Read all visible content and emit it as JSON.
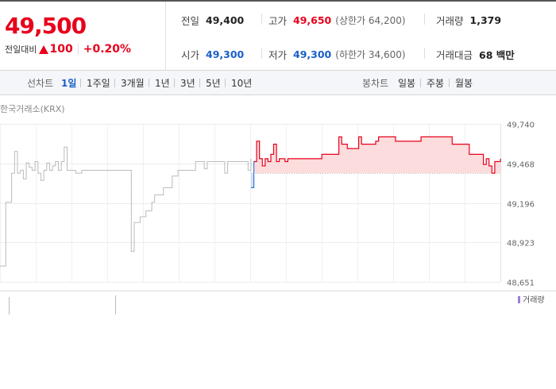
{
  "summary": {
    "current_price": "49,500",
    "change_label": "전일대비",
    "change_amount": "100",
    "change_rate": "+0.20%",
    "stats": [
      {
        "label": "전일",
        "value": "49,400",
        "color": "#222222"
      },
      {
        "label": "고가",
        "value": "49,650",
        "color": "#e8001c",
        "sub": "(상한가 64,200)"
      },
      {
        "label": "거래량",
        "value": "1,379",
        "color": "#222222"
      },
      {
        "label": "시가",
        "value": "49,300",
        "color": "#1a5fc8"
      },
      {
        "label": "저가",
        "value": "49,300",
        "color": "#1a5fc8",
        "sub": "(하한가 34,600)"
      },
      {
        "label": "거래대금",
        "value": "68 백만",
        "color": "#222222"
      }
    ]
  },
  "toolbar": {
    "line_chart_label": "선차트",
    "periods": [
      "1일",
      "1주일",
      "3개월",
      "1년",
      "3년",
      "5년",
      "10년"
    ],
    "active_period": "1일",
    "candle_chart_label": "봉차트",
    "candle_periods": [
      "일봉",
      "주봉",
      "월봉"
    ]
  },
  "chart": {
    "source_label": "한국거래소(KRX)",
    "volume_legend": "거래량"
  },
  "chart_data": {
    "type": "line",
    "y_ticks": [
      "49,740",
      "49,468",
      "49,196",
      "48,923",
      "48,651"
    ],
    "ylim": [
      48651,
      49740
    ],
    "baseline": 49400,
    "grid": true,
    "colors": {
      "up": "#e8001c",
      "down": "#3a78d8",
      "prev_session": "#bbbbbb",
      "fill_up": "#fcdcdc",
      "fill_down": "#cfe0f6"
    },
    "previous_session": [
      48760,
      48760,
      49200,
      49200,
      49400,
      49550,
      49400,
      49420,
      49360,
      49470,
      49440,
      49420,
      49480,
      49400,
      49350,
      49420,
      49470,
      49420,
      49450,
      49480,
      49420,
      49480,
      49580,
      49420,
      49420,
      49420,
      49400,
      49400,
      49420,
      49420,
      49420,
      49420,
      49420,
      49420,
      49420,
      49420,
      49420,
      49420,
      49420,
      49420,
      49420,
      49420,
      49420,
      49420,
      49420,
      48860,
      49060,
      49060,
      49100,
      49100,
      49140,
      49140,
      49200,
      49250,
      49250,
      49250,
      49300,
      49300,
      49300,
      49380,
      49380,
      49420,
      49420,
      49420,
      49420,
      49420,
      49420,
      49480,
      49480,
      49480,
      49430,
      49480,
      49480,
      49480,
      49480,
      49480,
      49480,
      49400,
      49480,
      49480,
      49480,
      49480,
      49480,
      49480,
      49480,
      49420,
      49500
    ],
    "today": [
      49300,
      49480,
      49620,
      49500,
      49450,
      49500,
      49480,
      49530,
      49600,
      49480,
      49500,
      49500,
      49480,
      49500,
      49500,
      49500,
      49500,
      49500,
      49500,
      49500,
      49500,
      49500,
      49500,
      49500,
      49500,
      49530,
      49530,
      49530,
      49530,
      49530,
      49530,
      49650,
      49600,
      49600,
      49570,
      49570,
      49570,
      49570,
      49650,
      49600,
      49600,
      49600,
      49600,
      49600,
      49620,
      49650,
      49650,
      49650,
      49650,
      49650,
      49650,
      49620,
      49620,
      49620,
      49620,
      49620,
      49620,
      49620,
      49620,
      49620,
      49650,
      49650,
      49650,
      49650,
      49650,
      49650,
      49650,
      49650,
      49650,
      49650,
      49650,
      49600,
      49600,
      49600,
      49600,
      49600,
      49600,
      49530,
      49530,
      49530,
      49530,
      49530,
      49460,
      49500,
      49450,
      49400,
      49480,
      49480,
      49500
    ]
  }
}
